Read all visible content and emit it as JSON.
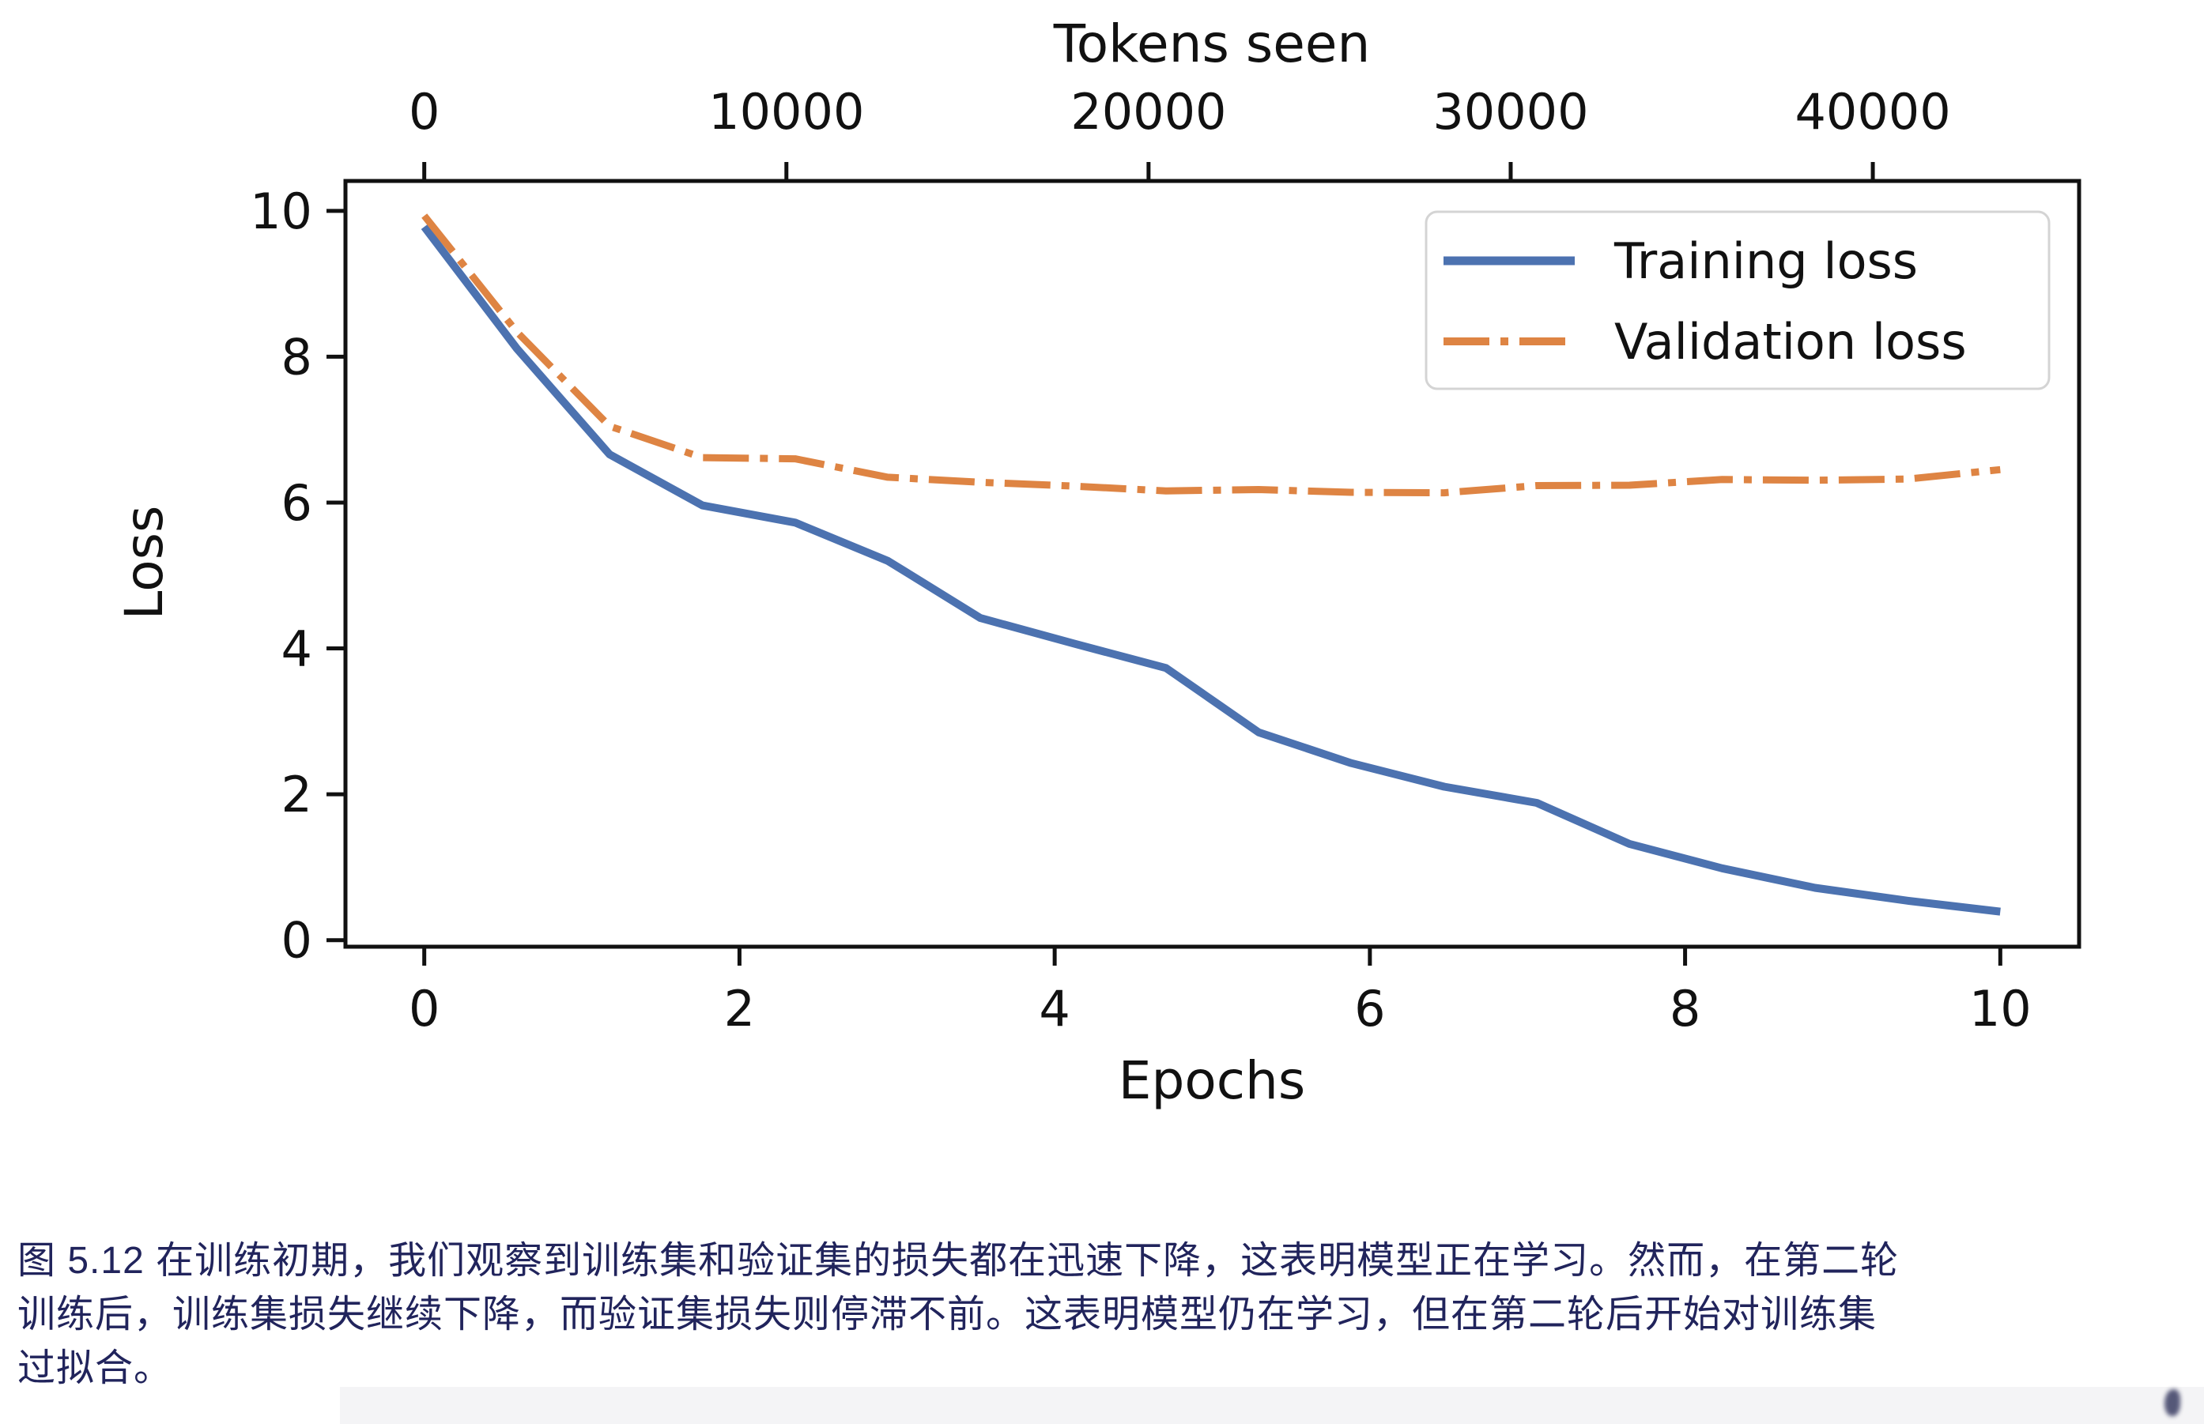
{
  "chart_data": {
    "type": "line",
    "top_axis_label": "Tokens seen",
    "xlabel": "Epochs",
    "ylabel": "Loss",
    "grid": false,
    "legend_position": "upper right",
    "xlim": [
      -0.5,
      10.5
    ],
    "ylim": [
      -0.09,
      10.41
    ],
    "x_ticks_bottom": [
      0,
      2,
      4,
      6,
      8,
      10
    ],
    "x_ticks_top_tokens": [
      0,
      10000,
      20000,
      30000,
      40000
    ],
    "y_ticks": [
      0,
      2,
      4,
      6,
      8,
      10
    ],
    "tokens_per_epoch": 4352,
    "x_epochs": [
      0,
      0.588,
      1.176,
      1.765,
      2.353,
      2.941,
      3.529,
      4.118,
      4.706,
      5.294,
      5.882,
      6.471,
      7.059,
      7.647,
      8.235,
      8.824,
      9.412,
      10
    ],
    "series": [
      {
        "name": "Training loss",
        "color": "#4C72B0",
        "style": "solid",
        "line_width": 10,
        "values": [
          9.781,
          8.111,
          6.661,
          5.961,
          5.726,
          5.201,
          4.417,
          4.069,
          3.732,
          2.85,
          2.427,
          2.104,
          1.882,
          1.32,
          0.985,
          0.717,
          0.541,
          0.391
        ]
      },
      {
        "name": "Validation loss",
        "color": "#DE8443",
        "style": "dashdot",
        "line_width": 9,
        "values": [
          9.933,
          8.339,
          7.048,
          6.616,
          6.6,
          6.348,
          6.278,
          6.226,
          6.16,
          6.179,
          6.141,
          6.134,
          6.233,
          6.238,
          6.316,
          6.306,
          6.323,
          6.452
        ]
      }
    ]
  },
  "figure": {
    "caption_lines": [
      "图 5.12 在训练初期，我们观察到训练集和验证集的损失都在迅速下降，这表明模型正在学习。然而，在第二轮",
      "训练后，训练集损失继续下降，而验证集损失则停滞不前。这表明模型仍在学习，但在第二轮后开始对训练集",
      "过拟合。"
    ]
  }
}
